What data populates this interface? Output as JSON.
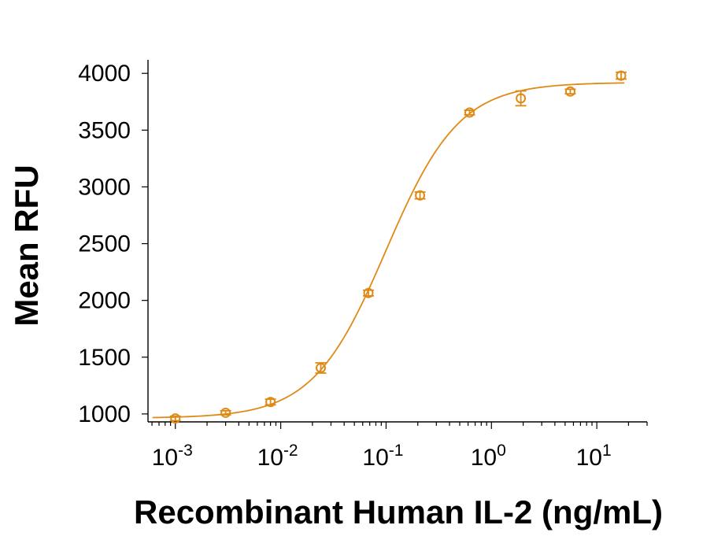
{
  "chart_data": {
    "type": "scatter",
    "xlabel": "Recombinant Human IL-2 (ng/mL)",
    "ylabel": "Mean RFU",
    "x_scale": "log",
    "xlim": [
      0.00055,
      30
    ],
    "ylim": [
      930,
      4050
    ],
    "x_ticks": [
      {
        "value": 0.001,
        "base": "10",
        "exp": "-3"
      },
      {
        "value": 0.01,
        "base": "10",
        "exp": "-2"
      },
      {
        "value": 0.1,
        "base": "10",
        "exp": "-1"
      },
      {
        "value": 1,
        "base": "10",
        "exp": "0"
      },
      {
        "value": 10,
        "base": "10",
        "exp": "1"
      }
    ],
    "y_ticks": [
      1000,
      1500,
      2000,
      2500,
      3000,
      3500,
      4000
    ],
    "grid": false,
    "color": "#E08A16",
    "series": [
      {
        "x": [
          0.001,
          0.003,
          0.008,
          0.024,
          0.068,
          0.21,
          0.62,
          1.9,
          5.6,
          17
        ],
        "y": [
          960,
          1010,
          1105,
          1405,
          2065,
          2925,
          3655,
          3780,
          3840,
          3980
        ],
        "error": [
          20,
          18,
          25,
          45,
          25,
          30,
          20,
          65,
          20,
          30
        ]
      }
    ],
    "fit": {
      "model": "4PL",
      "bottom": 963,
      "top": 3920,
      "ec50": 0.1,
      "hill": 1.25
    }
  }
}
